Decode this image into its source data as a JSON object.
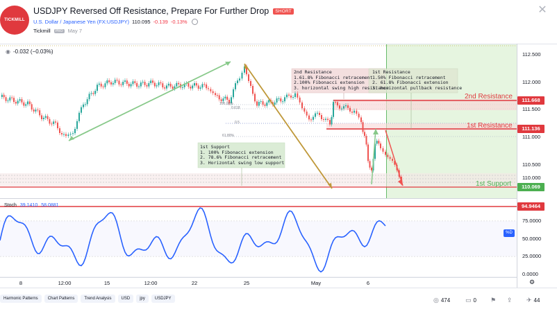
{
  "header": {
    "logo_text": "TICKMILL",
    "title": "USDJPY Reversed Off Resistance, Prepare For Further Drop",
    "direction_badge": "SHORT",
    "symbol_name": "U.S. Dollar / Japanese Yen (FX:USDJPY)",
    "price": "110.095",
    "change": "-0.139",
    "change_pct": "-0.13%",
    "author": "Tickmill",
    "author_badge": "PRO",
    "date": "May 7"
  },
  "main_legend": {
    "value": "-0.032 (−0.03%)"
  },
  "stoch_legend": {
    "name": "Stoch",
    "k": "39.1410",
    "d": "58.0881"
  },
  "price_axis": [
    "112.500",
    "112.000",
    "111.500",
    "111.000",
    "110.500",
    "110.000"
  ],
  "price_tags": {
    "r2": "111.668",
    "r1": "111.136",
    "s1": "110.069"
  },
  "stoch_axis": [
    "75.0000",
    "50.0000",
    "25.0000",
    "0.0000"
  ],
  "stoch_tag": "94.9464",
  "stoch_badge": "%D",
  "time_axis": [
    "8",
    "12:00",
    "15",
    "12:00",
    "22",
    "25",
    "May",
    "6"
  ],
  "levels": {
    "r2_label": "2nd Resistance",
    "r1_label": "1st Resistance",
    "s1_label": "1st Support"
  },
  "fib_labels": [
    "100.00%",
    "0.618",
    "0.5",
    "61.80%"
  ],
  "boxes": {
    "r2_text": "2nd Resistance\n1.61.8% Fibonacci retracement\n2.100% Fibonacci extension\n3. horizontal swing high resistance",
    "r1_text": "1st Resistance\n1.50% Fibonacci retracement\n2. 61.8% Fibonacci extension\n3. horizontal pullback resistance",
    "s1_text": "1st Support\n1. 100% Fibonacci extension\n2. 78.6% Fibonacci retracement\n3. Horizontal swing low support"
  },
  "tags": [
    "Harmonic Patterns",
    "Chart Patterns",
    "Trend Analysis",
    "USD",
    "jpy",
    "USDJPY"
  ],
  "actions": {
    "views": "474",
    "comments": "0",
    "likes": "44"
  },
  "colors": {
    "up": "#26a69a",
    "down": "#ef5350",
    "resistance": "#e0393e",
    "support": "#4caf50",
    "stoch": "#2962ff"
  }
}
